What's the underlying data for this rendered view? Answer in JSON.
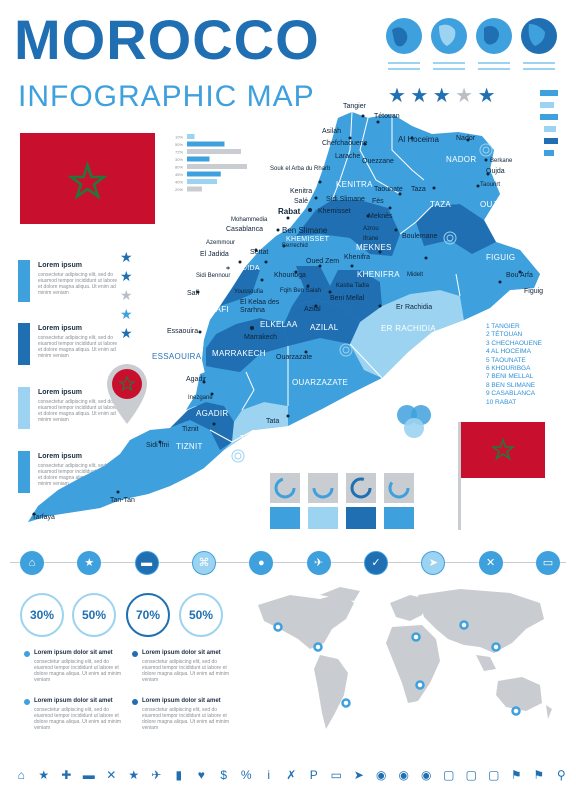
{
  "header": {
    "title": "MOROCCO",
    "subtitle": "INFOGRAPHIC MAP"
  },
  "colors": {
    "primary": "#1f6fb2",
    "light": "#3fa0de",
    "pale": "#9bd3f1",
    "flag_red": "#c8102e",
    "flag_star": "#1f7a3a",
    "grey": "#b9bfc6"
  },
  "rating": {
    "filled": 3,
    "total": 5
  },
  "bar_chart": {
    "labels": [
      "10%",
      "50%",
      "72%",
      "30%",
      "80%",
      "45%",
      "40%",
      "20%"
    ],
    "values": [
      10,
      50,
      72,
      30,
      80,
      45,
      40,
      20
    ]
  },
  "legend": [
    {
      "title": "Lorem ipsum",
      "text": "consectetur adipiscing elit, sed do eiusmod tempor incididunt ut labore et dolore magna aliqua. Ut enim ad minim veniam"
    },
    {
      "title": "Lorem ipsum",
      "text": "consectetur adipiscing elit, sed do eiusmod tempor incididunt ut labore et dolore magna aliqua. Ut enim ad minim veniam"
    },
    {
      "title": "Lorem ipsum",
      "text": "consectetur adipiscing elit, sed do eiusmod tempor incididunt ut labore et dolore magna aliqua. Ut enim ad minim veniam"
    },
    {
      "title": "Lorem ipsum",
      "text": "consectetur adipiscing elit, sed do eiusmod tempor incididunt ut labore et dolore magna aliqua. Ut enim ad minim veniam"
    }
  ],
  "cities": {
    "tangier": "Tangier",
    "tetouan": "Tétouan",
    "asilah": "Asilah",
    "chefchaouene": "Chefchaouene",
    "larache": "Larache",
    "ouezzane": "Ouezzane",
    "al_hoceima": "Al Hoceima",
    "nador": "Nador",
    "berkane": "Berkane",
    "oujda": "Oujda",
    "taourirt": "Taourirt",
    "taza": "Taza",
    "taounate": "Taounate",
    "fes": "Fès",
    "meknes": "Meknès",
    "souk": "Souk el Arba du Rharb",
    "kenitra": "Kenitra",
    "sale": "Salé",
    "sidi_slimane": "Sidi Slimane",
    "khemisset": "Khemisset",
    "rabat": "Rabat",
    "mohammedia": "Mohammedia",
    "casablanca": "Casablanca",
    "azemmour": "Azemmour",
    "el_jadida": "El Jadida",
    "berrechid": "Berrechid",
    "ben_slimane": "Ben Slimane",
    "settat": "Settat",
    "khouribga": "Khouribga",
    "oued_zem": "Oued Zem",
    "khenifra": "Khenifra",
    "boulemane": "Boulemane",
    "midelt": "Midelt",
    "azrou": "Azrou",
    "ifrane": "Ifrane",
    "figuig": "Figuig",
    "bou_arfa": "Bou Arfa",
    "er_rachidia": "Er Rachidia",
    "safi": "Safi",
    "sidi_bennour": "Sidi Bennour",
    "youssoufia": "Youssoufia",
    "el_kelaa": "El Kelaa des Srarhna",
    "fqih_ben_salah": "Fqih Ben Salah",
    "beni_mellal": "Beni Mellal",
    "kasba_tadla": "Kasba Tadla",
    "azilal": "Azilal",
    "marrakech": "Marrakech",
    "essaouira": "Essaouira",
    "ouarzazate": "Ouarzazate",
    "agadir": "Agadir",
    "inezgane": "Inezgane",
    "tiznit": "Tiznit",
    "tata": "Tata",
    "sidi_ifni": "Sidi Ifni",
    "tan_tan": "Tan-Tan",
    "tarfaya": "Tarfaya"
  },
  "regions": {
    "nador": "NADOR",
    "oujda": "OUJDA",
    "taza": "TAZA",
    "kenitra": "KENITRA",
    "khemisset": "KHEMISSET",
    "meknes": "MEKNES",
    "khenifra": "KHENIFRA",
    "figuig": "FIGUIG",
    "er_rachidia": "ER RACHIDIA",
    "el_jadida": "EL JADIDA",
    "safi": "SAFI",
    "elkelaa": "ELKELAA",
    "azilal": "AZILAL",
    "essaouira": "ESSAOUIRA",
    "marrakech": "MARRAKECH",
    "ouarzazate": "OUARZAZATE",
    "agadir": "AGADIR",
    "tata": "TATA",
    "tiznit": "TIZNIT",
    "tan_tan": "TAN-TAN"
  },
  "numbered_list": [
    "1 TANGIER",
    "2 TÉTOUAN",
    "3 CHECHAOUENE",
    "4 AL HOCEIMA",
    "5 TAOUNATE",
    "6 KHOURIBGA",
    "7 BENI MELLAL",
    "8 BEN SLIMANE",
    "9 CASABLANCA",
    "10 RABAT"
  ],
  "toolbar_icons": [
    "home-icon",
    "star-icon",
    "car-icon",
    "command-icon",
    "map-pin-icon",
    "airplane-icon",
    "check-icon",
    "navigation-icon",
    "restaurant-icon",
    "bed-icon"
  ],
  "percentages": [
    {
      "label": "30%",
      "value": 30
    },
    {
      "label": "50%",
      "value": 50
    },
    {
      "label": "70%",
      "value": 70
    },
    {
      "label": "50%",
      "value": 50
    }
  ],
  "bottom_text": [
    {
      "title": "Lorem ipsum dolor sit amet",
      "text": "consectetur adipiscing elit, sed do eiusmod tempor incididunt ut labore et dolore magna aliqua. Ut enim ad minim veniam"
    },
    {
      "title": "Lorem ipsum dolor sit amet",
      "text": "consectetur adipiscing elit, sed do eiusmod tempor incididunt ut labore et dolore magna aliqua. Ut enim ad minim veniam"
    },
    {
      "title": "Lorem ipsum dolor sit amet",
      "text": "consectetur adipiscing elit, sed do eiusmod tempor incididunt ut labore et dolore magna aliqua. Ut enim ad minim veniam"
    },
    {
      "title": "Lorem ipsum dolor sit amet",
      "text": "consectetur adipiscing elit, sed do eiusmod tempor incididunt ut labore et dolore magna aliqua. Ut enim ad minim veniam"
    }
  ],
  "bottom_icons": [
    "home",
    "star",
    "plus",
    "car",
    "close",
    "star",
    "airplane",
    "fuel",
    "heart",
    "dollar",
    "percent",
    "info",
    "restaurant",
    "parking",
    "bed",
    "navigation",
    "pin",
    "pin",
    "pin",
    "chat",
    "chat",
    "chat",
    "flag",
    "flag",
    "search"
  ]
}
